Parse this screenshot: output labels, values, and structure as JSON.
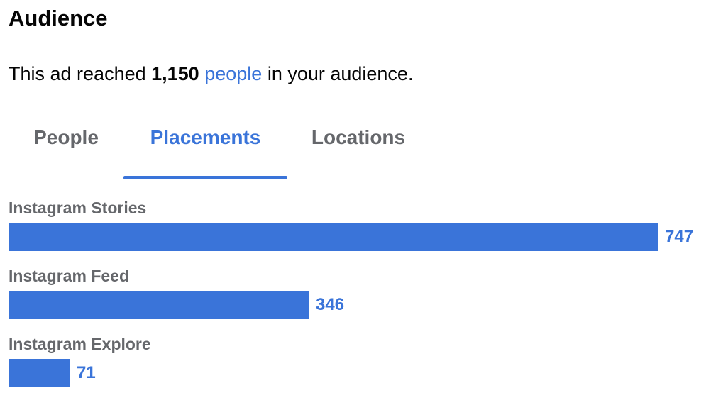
{
  "header": {
    "title": "Audience"
  },
  "summary": {
    "prefix": "This ad reached ",
    "count": "1,150",
    "link_text": "people",
    "suffix": " in your audience."
  },
  "tabs": [
    {
      "label": "People",
      "active": false
    },
    {
      "label": "Placements",
      "active": true
    },
    {
      "label": "Locations",
      "active": false
    }
  ],
  "placements": {
    "max_value": 747,
    "rows": [
      {
        "label": "Instagram Stories",
        "value": 747,
        "value_label": "747"
      },
      {
        "label": "Instagram Feed",
        "value": 346,
        "value_label": "346"
      },
      {
        "label": "Instagram Explore",
        "value": 71,
        "value_label": "71"
      }
    ]
  },
  "colors": {
    "accent": "#3a74d9",
    "muted_text": "#65676b"
  }
}
